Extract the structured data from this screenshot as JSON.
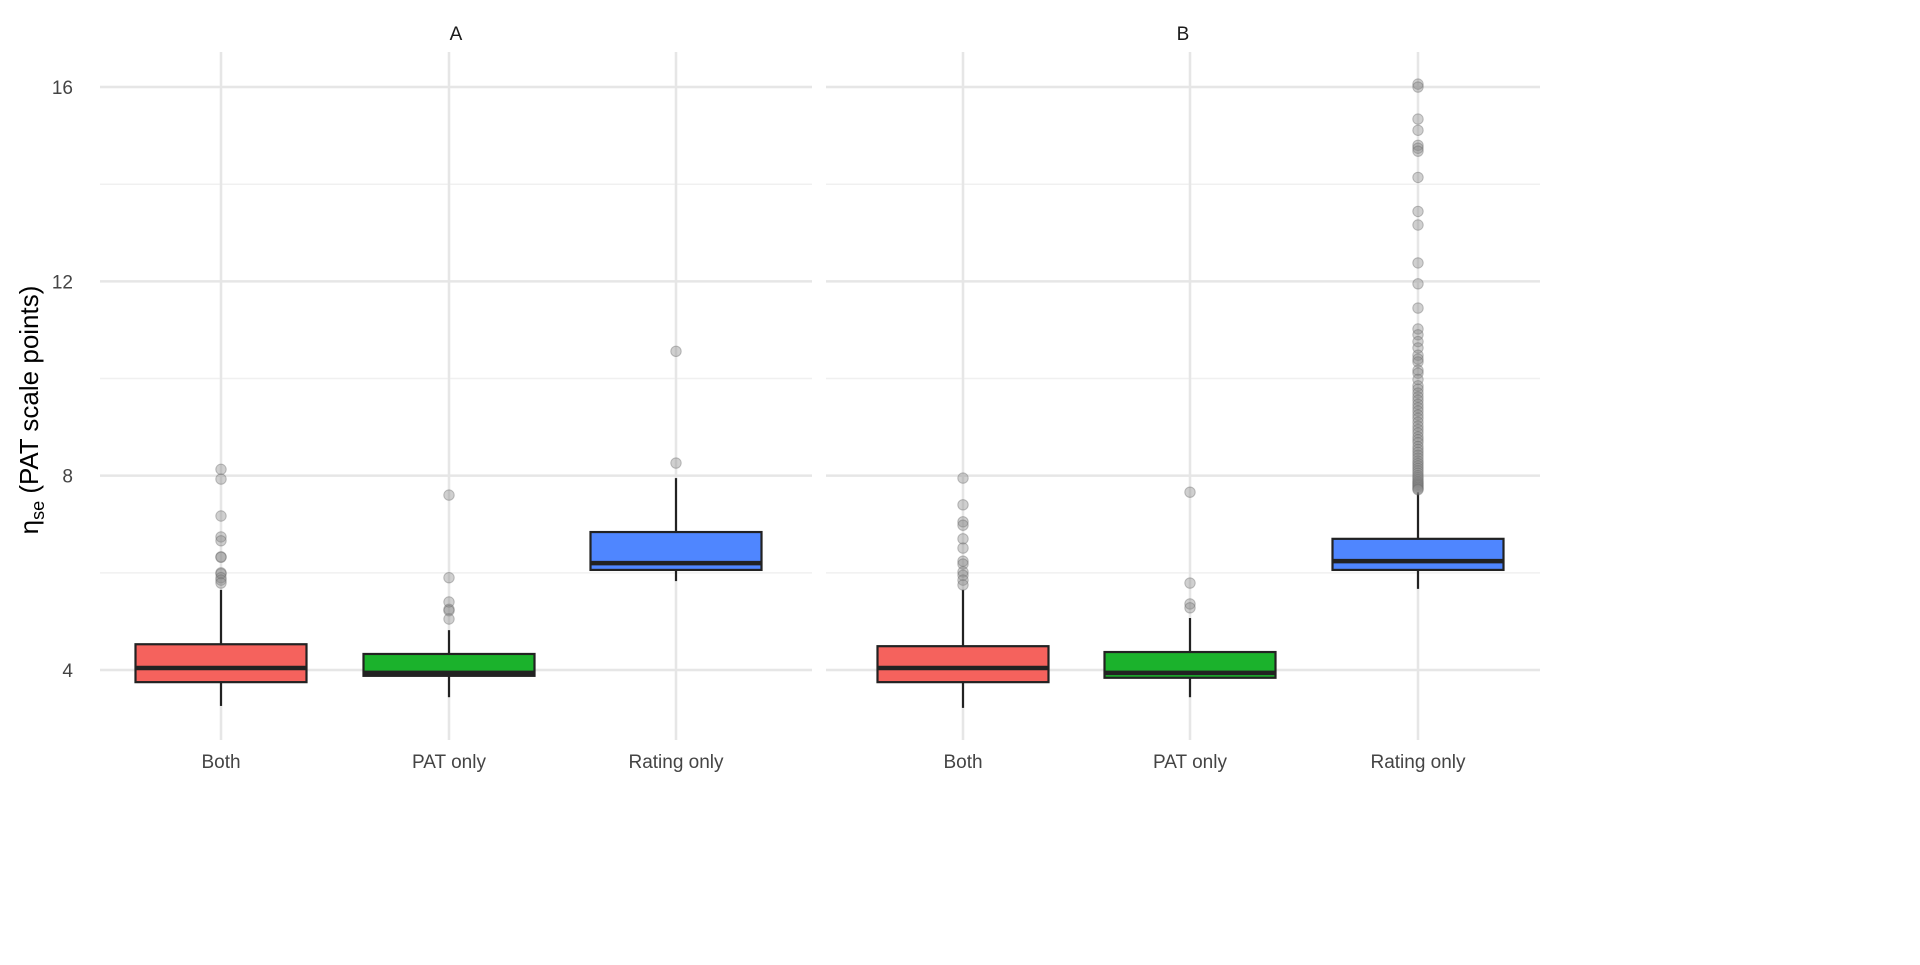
{
  "colors": {
    "Both": "#F5625D",
    "PAT only": "#1BB22C",
    "Rating only": "#4F86FF",
    "outlier": "#8a8a8a",
    "grid": "#e6e6e6"
  },
  "chart_data": {
    "type": "boxplot",
    "ylabel_main": "η",
    "ylabel_sub": "se",
    "ylabel_rest": " (PAT scale points)",
    "xlabel": "",
    "ylim": [
      2.6,
      16.8
    ],
    "yticks": [
      4,
      8,
      12,
      16
    ],
    "yticklabels": [
      "4",
      "8",
      "12",
      "16"
    ],
    "minor_yticks": [
      6,
      10,
      14
    ],
    "grid": true,
    "legend": "none",
    "categories": [
      "Both",
      "PAT only",
      "Rating only"
    ],
    "panels": [
      {
        "title": "A",
        "boxes": [
          {
            "category": "Both",
            "lower_whisker": 3.26,
            "q1": 3.75,
            "median": 4.04,
            "q3": 4.53,
            "upper_whisker": 5.65,
            "outliers": [
              8.13,
              7.93,
              7.17,
              6.74,
              6.66,
              6.33,
              6.32,
              6.0,
              5.98,
              5.9,
              5.85,
              5.79
            ]
          },
          {
            "category": "PAT only",
            "lower_whisker": 3.44,
            "q1": 3.88,
            "median": 3.94,
            "q3": 4.33,
            "upper_whisker": 4.82,
            "outliers": [
              7.6,
              5.9,
              5.4,
              5.25,
              5.22,
              5.05
            ]
          },
          {
            "category": "Rating only",
            "lower_whisker": 5.83,
            "q1": 6.06,
            "median": 6.2,
            "q3": 6.84,
            "upper_whisker": 7.95,
            "outliers": [
              10.56,
              8.26
            ]
          }
        ]
      },
      {
        "title": "B",
        "boxes": [
          {
            "category": "Both",
            "lower_whisker": 3.22,
            "q1": 3.75,
            "median": 4.04,
            "q3": 4.49,
            "upper_whisker": 5.65,
            "outliers": [
              7.95,
              7.4,
              7.05,
              6.98,
              6.7,
              6.51,
              6.24,
              6.18,
              6.02,
              5.95,
              5.85,
              5.75
            ]
          },
          {
            "category": "PAT only",
            "lower_whisker": 3.44,
            "q1": 3.84,
            "median": 3.94,
            "q3": 4.37,
            "upper_whisker": 5.07,
            "outliers": [
              7.66,
              5.79,
              5.36,
              5.28
            ]
          },
          {
            "category": "Rating only",
            "lower_whisker": 5.67,
            "q1": 6.06,
            "median": 6.24,
            "q3": 6.7,
            "upper_whisker": 7.66,
            "outliers": [
              16.06,
              16.0,
              15.34,
              15.11,
              14.8,
              14.74,
              14.68,
              14.14,
              13.44,
              13.16,
              12.38,
              11.95,
              11.45,
              11.02,
              10.9,
              10.76,
              10.63,
              10.48,
              10.4,
              10.34,
              10.17,
              10.11,
              9.98,
              9.85,
              9.78,
              9.7,
              9.62,
              9.55,
              9.47,
              9.4,
              9.33,
              9.25,
              9.18,
              9.1,
              9.02,
              8.95,
              8.88,
              8.8,
              8.74,
              8.68,
              8.6,
              8.54,
              8.48,
              8.42,
              8.36,
              8.3,
              8.25,
              8.2,
              8.15,
              8.1,
              8.05,
              8.0,
              7.96,
              7.92,
              7.88,
              7.85,
              7.82,
              7.79,
              7.76,
              7.73,
              7.71
            ]
          }
        ]
      }
    ]
  }
}
